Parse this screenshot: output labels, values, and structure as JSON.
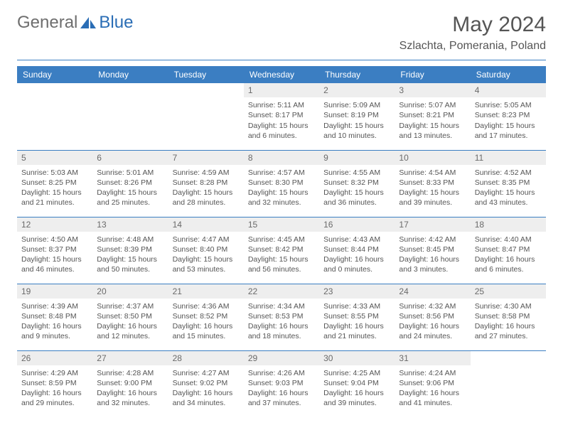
{
  "brand": {
    "general": "General",
    "blue": "Blue"
  },
  "title": "May 2024",
  "location": "Szlachta, Pomerania, Poland",
  "colors": {
    "accent": "#3b7ec2",
    "text": "#555555",
    "daybg": "#eeeeee"
  },
  "weekdays": [
    "Sunday",
    "Monday",
    "Tuesday",
    "Wednesday",
    "Thursday",
    "Friday",
    "Saturday"
  ],
  "weeks": [
    [
      {
        "day": "",
        "sunrise": "",
        "sunset": "",
        "daylight": ""
      },
      {
        "day": "",
        "sunrise": "",
        "sunset": "",
        "daylight": ""
      },
      {
        "day": "",
        "sunrise": "",
        "sunset": "",
        "daylight": ""
      },
      {
        "day": "1",
        "sunrise": "Sunrise: 5:11 AM",
        "sunset": "Sunset: 8:17 PM",
        "daylight": "Daylight: 15 hours and 6 minutes."
      },
      {
        "day": "2",
        "sunrise": "Sunrise: 5:09 AM",
        "sunset": "Sunset: 8:19 PM",
        "daylight": "Daylight: 15 hours and 10 minutes."
      },
      {
        "day": "3",
        "sunrise": "Sunrise: 5:07 AM",
        "sunset": "Sunset: 8:21 PM",
        "daylight": "Daylight: 15 hours and 13 minutes."
      },
      {
        "day": "4",
        "sunrise": "Sunrise: 5:05 AM",
        "sunset": "Sunset: 8:23 PM",
        "daylight": "Daylight: 15 hours and 17 minutes."
      }
    ],
    [
      {
        "day": "5",
        "sunrise": "Sunrise: 5:03 AM",
        "sunset": "Sunset: 8:25 PM",
        "daylight": "Daylight: 15 hours and 21 minutes."
      },
      {
        "day": "6",
        "sunrise": "Sunrise: 5:01 AM",
        "sunset": "Sunset: 8:26 PM",
        "daylight": "Daylight: 15 hours and 25 minutes."
      },
      {
        "day": "7",
        "sunrise": "Sunrise: 4:59 AM",
        "sunset": "Sunset: 8:28 PM",
        "daylight": "Daylight: 15 hours and 28 minutes."
      },
      {
        "day": "8",
        "sunrise": "Sunrise: 4:57 AM",
        "sunset": "Sunset: 8:30 PM",
        "daylight": "Daylight: 15 hours and 32 minutes."
      },
      {
        "day": "9",
        "sunrise": "Sunrise: 4:55 AM",
        "sunset": "Sunset: 8:32 PM",
        "daylight": "Daylight: 15 hours and 36 minutes."
      },
      {
        "day": "10",
        "sunrise": "Sunrise: 4:54 AM",
        "sunset": "Sunset: 8:33 PM",
        "daylight": "Daylight: 15 hours and 39 minutes."
      },
      {
        "day": "11",
        "sunrise": "Sunrise: 4:52 AM",
        "sunset": "Sunset: 8:35 PM",
        "daylight": "Daylight: 15 hours and 43 minutes."
      }
    ],
    [
      {
        "day": "12",
        "sunrise": "Sunrise: 4:50 AM",
        "sunset": "Sunset: 8:37 PM",
        "daylight": "Daylight: 15 hours and 46 minutes."
      },
      {
        "day": "13",
        "sunrise": "Sunrise: 4:48 AM",
        "sunset": "Sunset: 8:39 PM",
        "daylight": "Daylight: 15 hours and 50 minutes."
      },
      {
        "day": "14",
        "sunrise": "Sunrise: 4:47 AM",
        "sunset": "Sunset: 8:40 PM",
        "daylight": "Daylight: 15 hours and 53 minutes."
      },
      {
        "day": "15",
        "sunrise": "Sunrise: 4:45 AM",
        "sunset": "Sunset: 8:42 PM",
        "daylight": "Daylight: 15 hours and 56 minutes."
      },
      {
        "day": "16",
        "sunrise": "Sunrise: 4:43 AM",
        "sunset": "Sunset: 8:44 PM",
        "daylight": "Daylight: 16 hours and 0 minutes."
      },
      {
        "day": "17",
        "sunrise": "Sunrise: 4:42 AM",
        "sunset": "Sunset: 8:45 PM",
        "daylight": "Daylight: 16 hours and 3 minutes."
      },
      {
        "day": "18",
        "sunrise": "Sunrise: 4:40 AM",
        "sunset": "Sunset: 8:47 PM",
        "daylight": "Daylight: 16 hours and 6 minutes."
      }
    ],
    [
      {
        "day": "19",
        "sunrise": "Sunrise: 4:39 AM",
        "sunset": "Sunset: 8:48 PM",
        "daylight": "Daylight: 16 hours and 9 minutes."
      },
      {
        "day": "20",
        "sunrise": "Sunrise: 4:37 AM",
        "sunset": "Sunset: 8:50 PM",
        "daylight": "Daylight: 16 hours and 12 minutes."
      },
      {
        "day": "21",
        "sunrise": "Sunrise: 4:36 AM",
        "sunset": "Sunset: 8:52 PM",
        "daylight": "Daylight: 16 hours and 15 minutes."
      },
      {
        "day": "22",
        "sunrise": "Sunrise: 4:34 AM",
        "sunset": "Sunset: 8:53 PM",
        "daylight": "Daylight: 16 hours and 18 minutes."
      },
      {
        "day": "23",
        "sunrise": "Sunrise: 4:33 AM",
        "sunset": "Sunset: 8:55 PM",
        "daylight": "Daylight: 16 hours and 21 minutes."
      },
      {
        "day": "24",
        "sunrise": "Sunrise: 4:32 AM",
        "sunset": "Sunset: 8:56 PM",
        "daylight": "Daylight: 16 hours and 24 minutes."
      },
      {
        "day": "25",
        "sunrise": "Sunrise: 4:30 AM",
        "sunset": "Sunset: 8:58 PM",
        "daylight": "Daylight: 16 hours and 27 minutes."
      }
    ],
    [
      {
        "day": "26",
        "sunrise": "Sunrise: 4:29 AM",
        "sunset": "Sunset: 8:59 PM",
        "daylight": "Daylight: 16 hours and 29 minutes."
      },
      {
        "day": "27",
        "sunrise": "Sunrise: 4:28 AM",
        "sunset": "Sunset: 9:00 PM",
        "daylight": "Daylight: 16 hours and 32 minutes."
      },
      {
        "day": "28",
        "sunrise": "Sunrise: 4:27 AM",
        "sunset": "Sunset: 9:02 PM",
        "daylight": "Daylight: 16 hours and 34 minutes."
      },
      {
        "day": "29",
        "sunrise": "Sunrise: 4:26 AM",
        "sunset": "Sunset: 9:03 PM",
        "daylight": "Daylight: 16 hours and 37 minutes."
      },
      {
        "day": "30",
        "sunrise": "Sunrise: 4:25 AM",
        "sunset": "Sunset: 9:04 PM",
        "daylight": "Daylight: 16 hours and 39 minutes."
      },
      {
        "day": "31",
        "sunrise": "Sunrise: 4:24 AM",
        "sunset": "Sunset: 9:06 PM",
        "daylight": "Daylight: 16 hours and 41 minutes."
      },
      {
        "day": "",
        "sunrise": "",
        "sunset": "",
        "daylight": ""
      }
    ]
  ]
}
